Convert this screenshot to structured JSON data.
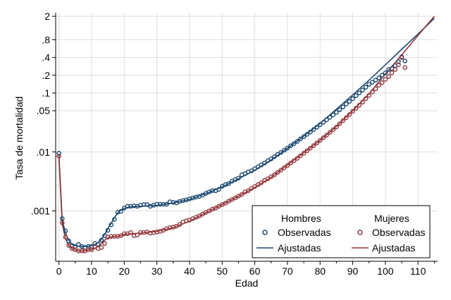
{
  "chart_data": {
    "type": "line",
    "xlabel": "Edad",
    "ylabel": "Tasa de mortalidad",
    "xlim": [
      -1,
      116
    ],
    "ylim": [
      0.00014,
      2.3
    ],
    "yscale": "log",
    "grid": true,
    "legend_position": "bottom-right",
    "x_ticks": [
      0,
      10,
      20,
      30,
      40,
      50,
      60,
      70,
      80,
      90,
      100,
      110
    ],
    "x_tick_labels": [
      "0",
      "10",
      "20",
      "30",
      "40",
      "50",
      "60",
      "70",
      "80",
      "90",
      "100",
      "110"
    ],
    "y_ticks": [
      0.001,
      0.01,
      0.05,
      0.1,
      0.2,
      0.4,
      0.8,
      2
    ],
    "y_tick_labels": [
      ".001",
      ".01",
      ".05",
      ".1",
      ".2",
      ".4",
      ".8",
      "2"
    ],
    "legend": {
      "headers": [
        "Hombres",
        "Mujeres"
      ],
      "observed_label": "Observadas",
      "fitted_label": "Ajustadas"
    },
    "colors": {
      "men": "#1a476f",
      "women": "#90353b"
    },
    "x": [
      0,
      1,
      2,
      3,
      4,
      5,
      6,
      7,
      8,
      9,
      10,
      11,
      12,
      13,
      14,
      15,
      16,
      17,
      18,
      19,
      20,
      21,
      22,
      23,
      24,
      25,
      26,
      27,
      28,
      29,
      30,
      31,
      32,
      33,
      34,
      35,
      36,
      37,
      38,
      39,
      40,
      41,
      42,
      43,
      44,
      45,
      46,
      47,
      48,
      49,
      50,
      51,
      52,
      53,
      54,
      55,
      56,
      57,
      58,
      59,
      60,
      61,
      62,
      63,
      64,
      65,
      66,
      67,
      68,
      69,
      70,
      71,
      72,
      73,
      74,
      75,
      76,
      77,
      78,
      79,
      80,
      81,
      82,
      83,
      84,
      85,
      86,
      87,
      88,
      89,
      90,
      91,
      92,
      93,
      94,
      95,
      96,
      97,
      98,
      99,
      100,
      101,
      102,
      103,
      104,
      105,
      106
    ],
    "series": [
      {
        "name": "Hombres Observadas",
        "kind": "observed",
        "values": [
          0.0095,
          0.00074,
          0.00046,
          0.00031,
          0.00026,
          0.00025,
          0.00027,
          0.00025,
          0.00024,
          0.00025,
          0.00025,
          0.00028,
          0.00027,
          0.00032,
          0.00038,
          0.00047,
          0.00058,
          0.00072,
          0.00095,
          0.00098,
          0.00112,
          0.0012,
          0.0012,
          0.00122,
          0.0012,
          0.00125,
          0.00128,
          0.00128,
          0.0012,
          0.00125,
          0.0013,
          0.0013,
          0.00129,
          0.0013,
          0.00143,
          0.0014,
          0.00137,
          0.00145,
          0.0015,
          0.00154,
          0.0016,
          0.00166,
          0.00172,
          0.00176,
          0.00185,
          0.00198,
          0.0021,
          0.0022,
          0.0022,
          0.00232,
          0.00262,
          0.0028,
          0.0029,
          0.0032,
          0.0034,
          0.0036,
          0.0041,
          0.0043,
          0.0046,
          0.0048,
          0.0052,
          0.0056,
          0.006,
          0.0065,
          0.0071,
          0.0076,
          0.0083,
          0.0091,
          0.0098,
          0.0107,
          0.0116,
          0.0127,
          0.0138,
          0.0151,
          0.0166,
          0.0182,
          0.0199,
          0.0218,
          0.024,
          0.0264,
          0.029,
          0.0318,
          0.035,
          0.0386,
          0.0424,
          0.0467,
          0.052,
          0.058,
          0.065,
          0.072,
          0.08,
          0.09,
          0.1,
          0.112,
          0.125,
          0.14,
          0.152,
          0.165,
          0.18,
          0.2,
          0.22,
          0.25,
          0.26,
          0.29,
          0.34,
          0.41,
          0.35
        ]
      },
      {
        "name": "Mujeres Observadas",
        "kind": "observed",
        "values": [
          0.0085,
          0.00063,
          0.00036,
          0.00026,
          0.00023,
          0.00022,
          0.00021,
          0.00021,
          0.00021,
          0.00022,
          0.00022,
          0.00025,
          0.00023,
          0.00024,
          0.00028,
          0.00036,
          0.00037,
          0.00037,
          0.00037,
          0.00038,
          0.00041,
          0.00041,
          0.00043,
          0.00038,
          0.00039,
          0.00043,
          0.00043,
          0.00044,
          0.00042,
          0.00043,
          0.00044,
          0.00045,
          0.00047,
          0.0005,
          0.00052,
          0.00053,
          0.00055,
          0.00059,
          0.00065,
          0.00068,
          0.0007,
          0.00074,
          0.00078,
          0.00082,
          0.00088,
          0.00094,
          0.001,
          0.00107,
          0.00112,
          0.0012,
          0.00128,
          0.00135,
          0.00146,
          0.00156,
          0.00166,
          0.00178,
          0.0019,
          0.0021,
          0.0022,
          0.0024,
          0.0026,
          0.0028,
          0.003,
          0.0033,
          0.0035,
          0.0038,
          0.0041,
          0.0045,
          0.0049,
          0.0054,
          0.0059,
          0.0065,
          0.0071,
          0.0078,
          0.0086,
          0.0095,
          0.0105,
          0.0116,
          0.0128,
          0.0142,
          0.0157,
          0.0174,
          0.0193,
          0.0215,
          0.0238,
          0.0265,
          0.03,
          0.034,
          0.038,
          0.043,
          0.049,
          0.055,
          0.062,
          0.07,
          0.08,
          0.091,
          0.104,
          0.118,
          0.135,
          0.15,
          0.17,
          0.19,
          0.22,
          0.25,
          0.3,
          0.4,
          0.27
        ]
      },
      {
        "name": "Hombres Ajustadas",
        "kind": "fitted",
        "x": [
          0,
          1,
          2,
          3,
          4,
          5,
          6,
          7,
          8,
          9,
          10,
          11,
          12,
          13,
          14,
          15,
          16,
          17,
          18,
          19,
          20,
          22,
          25,
          30,
          35,
          40,
          45,
          50,
          55,
          60,
          65,
          70,
          75,
          80,
          85,
          90,
          95,
          100,
          105,
          110,
          115
        ],
        "values": [
          0.009,
          0.0007,
          0.00042,
          0.00032,
          0.00027,
          0.00026,
          0.00025,
          0.00025,
          0.00025,
          0.00025,
          0.00026,
          0.00027,
          0.00029,
          0.00033,
          0.0004,
          0.0005,
          0.00062,
          0.00077,
          0.00092,
          0.00103,
          0.0011,
          0.00118,
          0.0012,
          0.00124,
          0.00136,
          0.00157,
          0.00196,
          0.00256,
          0.0035,
          0.0049,
          0.0073,
          0.0115,
          0.0185,
          0.0305,
          0.053,
          0.093,
          0.165,
          0.3,
          0.55,
          1.0,
          1.85
        ]
      },
      {
        "name": "Mujeres Ajustadas",
        "kind": "fitted",
        "x": [
          0,
          1,
          2,
          3,
          4,
          5,
          6,
          7,
          8,
          9,
          10,
          11,
          12,
          13,
          14,
          15,
          16,
          17,
          18,
          19,
          20,
          22,
          25,
          30,
          35,
          40,
          45,
          50,
          55,
          60,
          65,
          70,
          75,
          80,
          85,
          90,
          95,
          100,
          105,
          110,
          115
        ],
        "values": [
          0.0082,
          0.0006,
          0.00034,
          0.00026,
          0.00023,
          0.00022,
          0.00021,
          0.00021,
          0.00021,
          0.00022,
          0.00022,
          0.00023,
          0.00025,
          0.00028,
          0.00032,
          0.00035,
          0.00036,
          0.00037,
          0.00037,
          0.00038,
          0.0004,
          0.00041,
          0.00042,
          0.00045,
          0.00052,
          0.00067,
          0.00093,
          0.00128,
          0.00177,
          0.0025,
          0.0037,
          0.006,
          0.0097,
          0.0158,
          0.027,
          0.05,
          0.097,
          0.21,
          0.44,
          0.95,
          2.0
        ]
      }
    ]
  }
}
